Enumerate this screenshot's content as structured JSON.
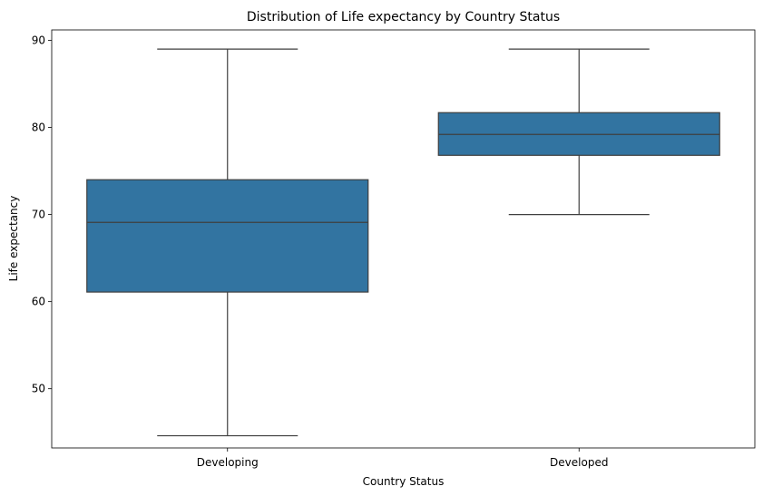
{
  "chart_data": {
    "type": "boxplot",
    "title": "Distribution of Life expectancy by Country Status",
    "xlabel": "Country Status",
    "ylabel": "Life expectancy",
    "ylim": [
      43.2,
      91.2
    ],
    "yticks": [
      "50",
      "60",
      "70",
      "80",
      "90"
    ],
    "categories": [
      "Developing",
      "Developed"
    ],
    "boxes": [
      {
        "category": "Developing",
        "whisker_low": 44.6,
        "q1": 61.1,
        "median": 69.1,
        "q3": 74.0,
        "whisker_high": 89.0
      },
      {
        "category": "Developed",
        "whisker_low": 70.0,
        "q1": 76.8,
        "median": 79.2,
        "q3": 81.7,
        "whisker_high": 89.0
      }
    ],
    "grid": false,
    "box_color": "#3274a1",
    "line_color": "#3f3f3f"
  }
}
